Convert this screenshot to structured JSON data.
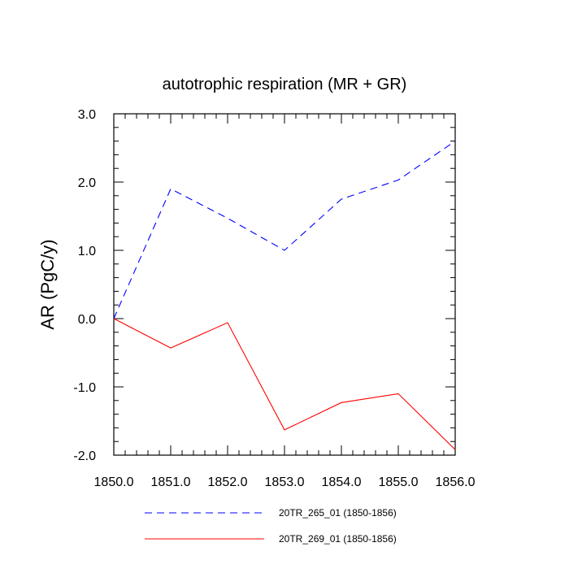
{
  "chart_data": {
    "type": "line",
    "title": "autotrophic respiration (MR + GR)",
    "xlabel": "",
    "ylabel": "AR  (PgC/y)",
    "xlim": [
      1850.0,
      1856.0
    ],
    "ylim": [
      -2.0,
      3.0
    ],
    "x_ticks": [
      1850.0,
      1851.0,
      1852.0,
      1853.0,
      1854.0,
      1855.0,
      1856.0
    ],
    "x_tick_labels": [
      "1850.0",
      "1851.0",
      "1852.0",
      "1853.0",
      "1854.0",
      "1855.0",
      "1856.0"
    ],
    "y_ticks": [
      3.0,
      2.0,
      1.0,
      0.0,
      -1.0,
      -2.0
    ],
    "y_tick_labels": [
      "3.0",
      "2.0",
      "1.0",
      "0.0",
      "-1.0",
      "-2.0"
    ],
    "grid": false,
    "legend_position": "bottom",
    "series": [
      {
        "name": "20TR_265_01 (1850-1856)",
        "color": "#0000ff",
        "dash": "dashed",
        "x": [
          1850,
          1851,
          1852,
          1853,
          1854,
          1855,
          1856
        ],
        "values": [
          0.0,
          1.9,
          1.47,
          1.0,
          1.75,
          2.03,
          2.6
        ]
      },
      {
        "name": "20TR_269_01 (1850-1856)",
        "color": "#ff0000",
        "dash": "solid",
        "x": [
          1850,
          1851,
          1852,
          1853,
          1854,
          1855,
          1856
        ],
        "values": [
          0.0,
          -0.43,
          -0.06,
          -1.63,
          -1.23,
          -1.1,
          -1.92
        ]
      }
    ]
  }
}
